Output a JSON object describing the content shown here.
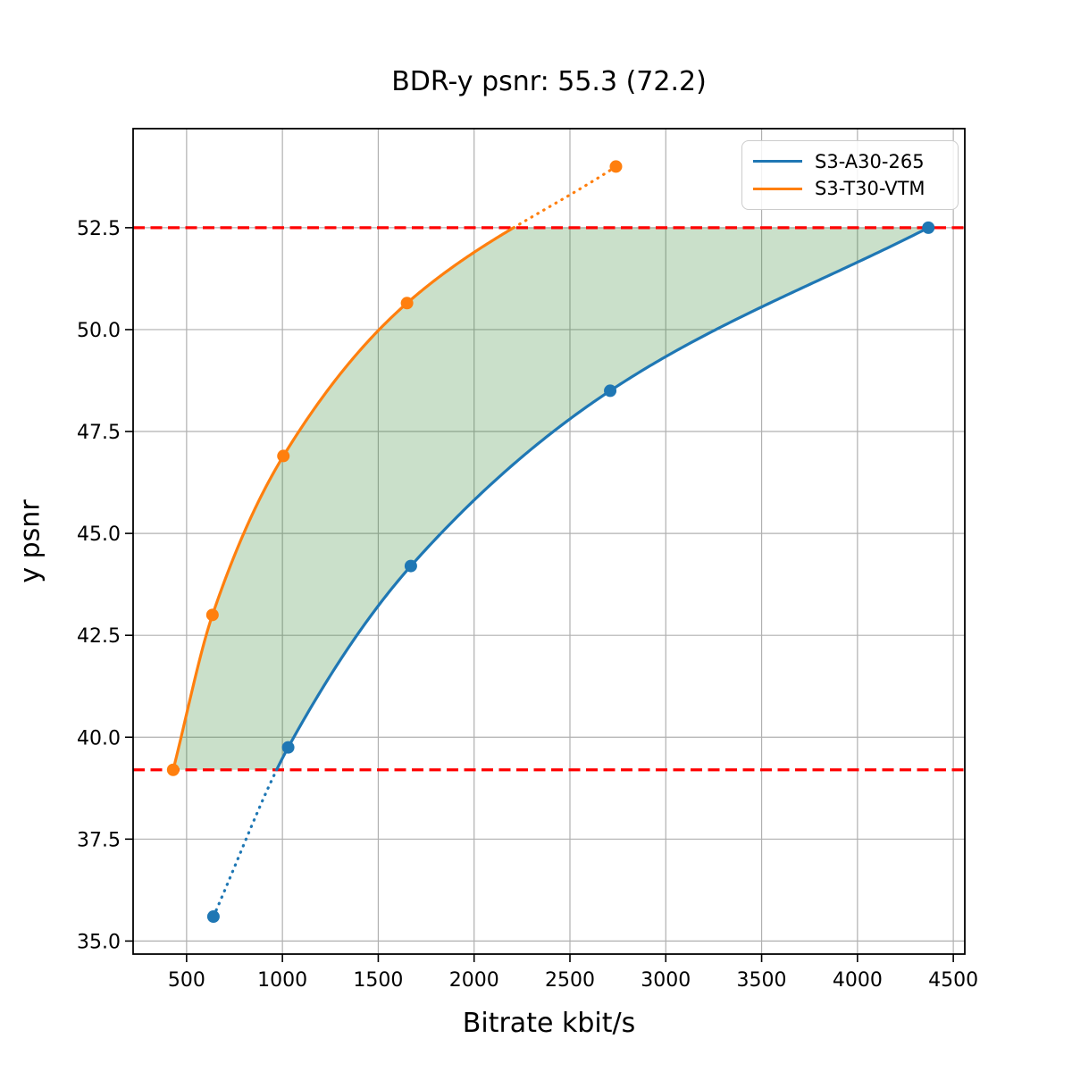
{
  "title": "BDR-y psnr: 55.3 (72.2)",
  "chart_data": {
    "type": "line",
    "title": "BDR-y psnr: 55.3 (72.2)",
    "xlabel": "Bitrate kbit/s",
    "ylabel": "y psnr",
    "xlim": [
      221,
      4560
    ],
    "ylim": [
      34.68,
      54.93
    ],
    "x_ticks": [
      500,
      1000,
      1500,
      2000,
      2500,
      3000,
      3500,
      4000,
      4500
    ],
    "x_tick_labels": [
      "500",
      "1000",
      "1500",
      "2000",
      "2500",
      "3000",
      "3500",
      "4000",
      "4500"
    ],
    "y_ticks": [
      35.0,
      37.5,
      40.0,
      42.5,
      45.0,
      47.5,
      50.0,
      52.5
    ],
    "y_tick_labels": [
      "35.0",
      "37.5",
      "40.0",
      "42.5",
      "45.0",
      "47.5",
      "50.0",
      "52.5"
    ],
    "grid": true,
    "legend_position": "upper right",
    "series": [
      {
        "name": "S3-A30-265",
        "color": "#1f77b4",
        "marker": "circle",
        "x": [
          640,
          1030,
          1670,
          2710,
          4370
        ],
        "y": [
          35.6,
          39.75,
          44.2,
          48.5,
          52.5
        ]
      },
      {
        "name": "S3-T30-VTM",
        "color": "#ff7f0e",
        "marker": "circle",
        "x": [
          430,
          635,
          1005,
          1650,
          2740
        ],
        "y": [
          39.2,
          43.0,
          46.9,
          50.65,
          54.0
        ]
      }
    ],
    "hlines": {
      "values": [
        39.2,
        52.5
      ],
      "color": "#ff0000",
      "style": "dashed"
    },
    "shaded_region": {
      "description": "area between the two rate-distortion curves over the common psnr range",
      "y_range": [
        39.2,
        52.5
      ],
      "color": "rgba(44,130,44,0.25)"
    },
    "colors": {
      "grid": "#b0b0b0",
      "spine": "#000000",
      "background": "#ffffff"
    }
  }
}
